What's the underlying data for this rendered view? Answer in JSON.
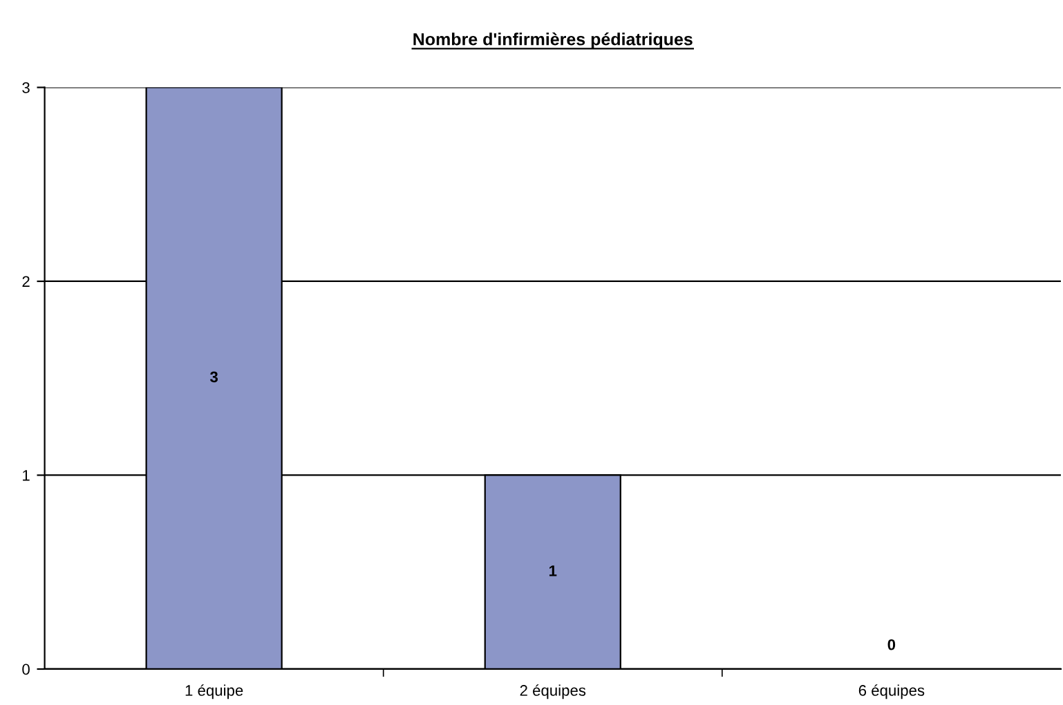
{
  "chart_data": {
    "type": "bar",
    "title": "Nombre d'infirmières pédiatriques",
    "categories": [
      "1 équipe",
      "2 équipes",
      "6 équipes"
    ],
    "values": [
      3,
      1,
      0
    ],
    "color": "#8c96c8",
    "ylim": [
      0,
      3
    ],
    "yticks": [
      0,
      1,
      2,
      3
    ],
    "grid": "y",
    "data_labels": true,
    "legend": false
  }
}
